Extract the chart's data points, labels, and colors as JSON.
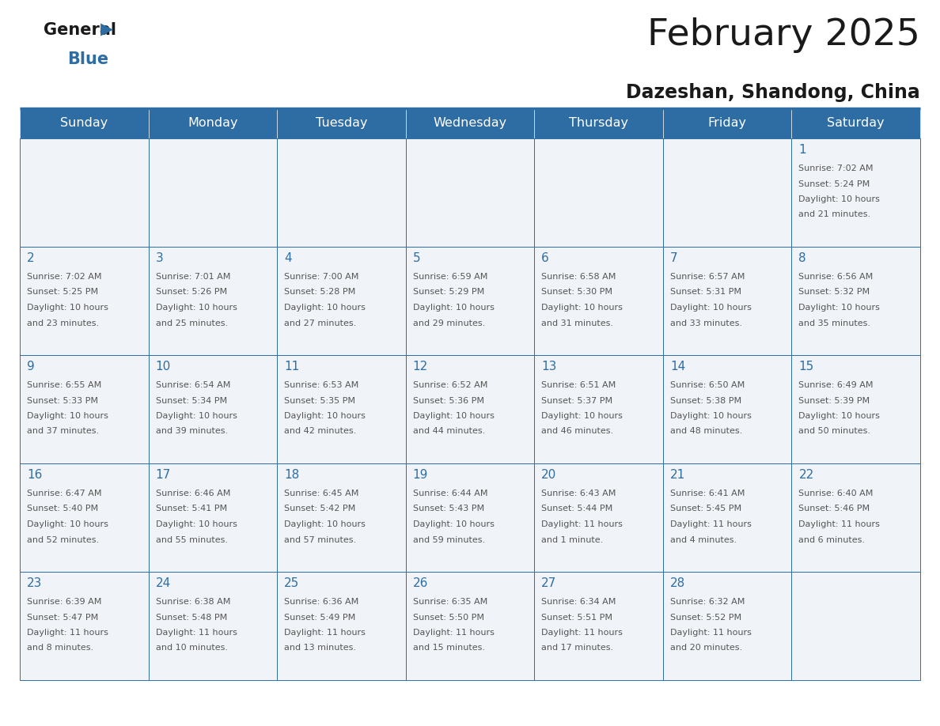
{
  "title": "February 2025",
  "subtitle": "Dazeshan, Shandong, China",
  "header_bg": "#2e6da4",
  "header_text_color": "#ffffff",
  "cell_bg_light": "#f0f4f8",
  "cell_bg_white": "#ffffff",
  "cell_border_color": "#2e6da4",
  "day_number_color": "#2e6da4",
  "info_text_color": "#555555",
  "title_color": "#1a1a1a",
  "days_of_week": [
    "Sunday",
    "Monday",
    "Tuesday",
    "Wednesday",
    "Thursday",
    "Friday",
    "Saturday"
  ],
  "calendar_data": [
    [
      null,
      null,
      null,
      null,
      null,
      null,
      {
        "day": "1",
        "sunrise": "Sunrise: 7:02 AM",
        "sunset": "Sunset: 5:24 PM",
        "daylight": "Daylight: 10 hours",
        "daylight2": "and 21 minutes."
      }
    ],
    [
      {
        "day": "2",
        "sunrise": "Sunrise: 7:02 AM",
        "sunset": "Sunset: 5:25 PM",
        "daylight": "Daylight: 10 hours",
        "daylight2": "and 23 minutes."
      },
      {
        "day": "3",
        "sunrise": "Sunrise: 7:01 AM",
        "sunset": "Sunset: 5:26 PM",
        "daylight": "Daylight: 10 hours",
        "daylight2": "and 25 minutes."
      },
      {
        "day": "4",
        "sunrise": "Sunrise: 7:00 AM",
        "sunset": "Sunset: 5:28 PM",
        "daylight": "Daylight: 10 hours",
        "daylight2": "and 27 minutes."
      },
      {
        "day": "5",
        "sunrise": "Sunrise: 6:59 AM",
        "sunset": "Sunset: 5:29 PM",
        "daylight": "Daylight: 10 hours",
        "daylight2": "and 29 minutes."
      },
      {
        "day": "6",
        "sunrise": "Sunrise: 6:58 AM",
        "sunset": "Sunset: 5:30 PM",
        "daylight": "Daylight: 10 hours",
        "daylight2": "and 31 minutes."
      },
      {
        "day": "7",
        "sunrise": "Sunrise: 6:57 AM",
        "sunset": "Sunset: 5:31 PM",
        "daylight": "Daylight: 10 hours",
        "daylight2": "and 33 minutes."
      },
      {
        "day": "8",
        "sunrise": "Sunrise: 6:56 AM",
        "sunset": "Sunset: 5:32 PM",
        "daylight": "Daylight: 10 hours",
        "daylight2": "and 35 minutes."
      }
    ],
    [
      {
        "day": "9",
        "sunrise": "Sunrise: 6:55 AM",
        "sunset": "Sunset: 5:33 PM",
        "daylight": "Daylight: 10 hours",
        "daylight2": "and 37 minutes."
      },
      {
        "day": "10",
        "sunrise": "Sunrise: 6:54 AM",
        "sunset": "Sunset: 5:34 PM",
        "daylight": "Daylight: 10 hours",
        "daylight2": "and 39 minutes."
      },
      {
        "day": "11",
        "sunrise": "Sunrise: 6:53 AM",
        "sunset": "Sunset: 5:35 PM",
        "daylight": "Daylight: 10 hours",
        "daylight2": "and 42 minutes."
      },
      {
        "day": "12",
        "sunrise": "Sunrise: 6:52 AM",
        "sunset": "Sunset: 5:36 PM",
        "daylight": "Daylight: 10 hours",
        "daylight2": "and 44 minutes."
      },
      {
        "day": "13",
        "sunrise": "Sunrise: 6:51 AM",
        "sunset": "Sunset: 5:37 PM",
        "daylight": "Daylight: 10 hours",
        "daylight2": "and 46 minutes."
      },
      {
        "day": "14",
        "sunrise": "Sunrise: 6:50 AM",
        "sunset": "Sunset: 5:38 PM",
        "daylight": "Daylight: 10 hours",
        "daylight2": "and 48 minutes."
      },
      {
        "day": "15",
        "sunrise": "Sunrise: 6:49 AM",
        "sunset": "Sunset: 5:39 PM",
        "daylight": "Daylight: 10 hours",
        "daylight2": "and 50 minutes."
      }
    ],
    [
      {
        "day": "16",
        "sunrise": "Sunrise: 6:47 AM",
        "sunset": "Sunset: 5:40 PM",
        "daylight": "Daylight: 10 hours",
        "daylight2": "and 52 minutes."
      },
      {
        "day": "17",
        "sunrise": "Sunrise: 6:46 AM",
        "sunset": "Sunset: 5:41 PM",
        "daylight": "Daylight: 10 hours",
        "daylight2": "and 55 minutes."
      },
      {
        "day": "18",
        "sunrise": "Sunrise: 6:45 AM",
        "sunset": "Sunset: 5:42 PM",
        "daylight": "Daylight: 10 hours",
        "daylight2": "and 57 minutes."
      },
      {
        "day": "19",
        "sunrise": "Sunrise: 6:44 AM",
        "sunset": "Sunset: 5:43 PM",
        "daylight": "Daylight: 10 hours",
        "daylight2": "and 59 minutes."
      },
      {
        "day": "20",
        "sunrise": "Sunrise: 6:43 AM",
        "sunset": "Sunset: 5:44 PM",
        "daylight": "Daylight: 11 hours",
        "daylight2": "and 1 minute."
      },
      {
        "day": "21",
        "sunrise": "Sunrise: 6:41 AM",
        "sunset": "Sunset: 5:45 PM",
        "daylight": "Daylight: 11 hours",
        "daylight2": "and 4 minutes."
      },
      {
        "day": "22",
        "sunrise": "Sunrise: 6:40 AM",
        "sunset": "Sunset: 5:46 PM",
        "daylight": "Daylight: 11 hours",
        "daylight2": "and 6 minutes."
      }
    ],
    [
      {
        "day": "23",
        "sunrise": "Sunrise: 6:39 AM",
        "sunset": "Sunset: 5:47 PM",
        "daylight": "Daylight: 11 hours",
        "daylight2": "and 8 minutes."
      },
      {
        "day": "24",
        "sunrise": "Sunrise: 6:38 AM",
        "sunset": "Sunset: 5:48 PM",
        "daylight": "Daylight: 11 hours",
        "daylight2": "and 10 minutes."
      },
      {
        "day": "25",
        "sunrise": "Sunrise: 6:36 AM",
        "sunset": "Sunset: 5:49 PM",
        "daylight": "Daylight: 11 hours",
        "daylight2": "and 13 minutes."
      },
      {
        "day": "26",
        "sunrise": "Sunrise: 6:35 AM",
        "sunset": "Sunset: 5:50 PM",
        "daylight": "Daylight: 11 hours",
        "daylight2": "and 15 minutes."
      },
      {
        "day": "27",
        "sunrise": "Sunrise: 6:34 AM",
        "sunset": "Sunset: 5:51 PM",
        "daylight": "Daylight: 11 hours",
        "daylight2": "and 17 minutes."
      },
      {
        "day": "28",
        "sunrise": "Sunrise: 6:32 AM",
        "sunset": "Sunset: 5:52 PM",
        "daylight": "Daylight: 11 hours",
        "daylight2": "and 20 minutes."
      },
      null
    ]
  ],
  "figsize": [
    11.88,
    9.18
  ],
  "dpi": 100
}
